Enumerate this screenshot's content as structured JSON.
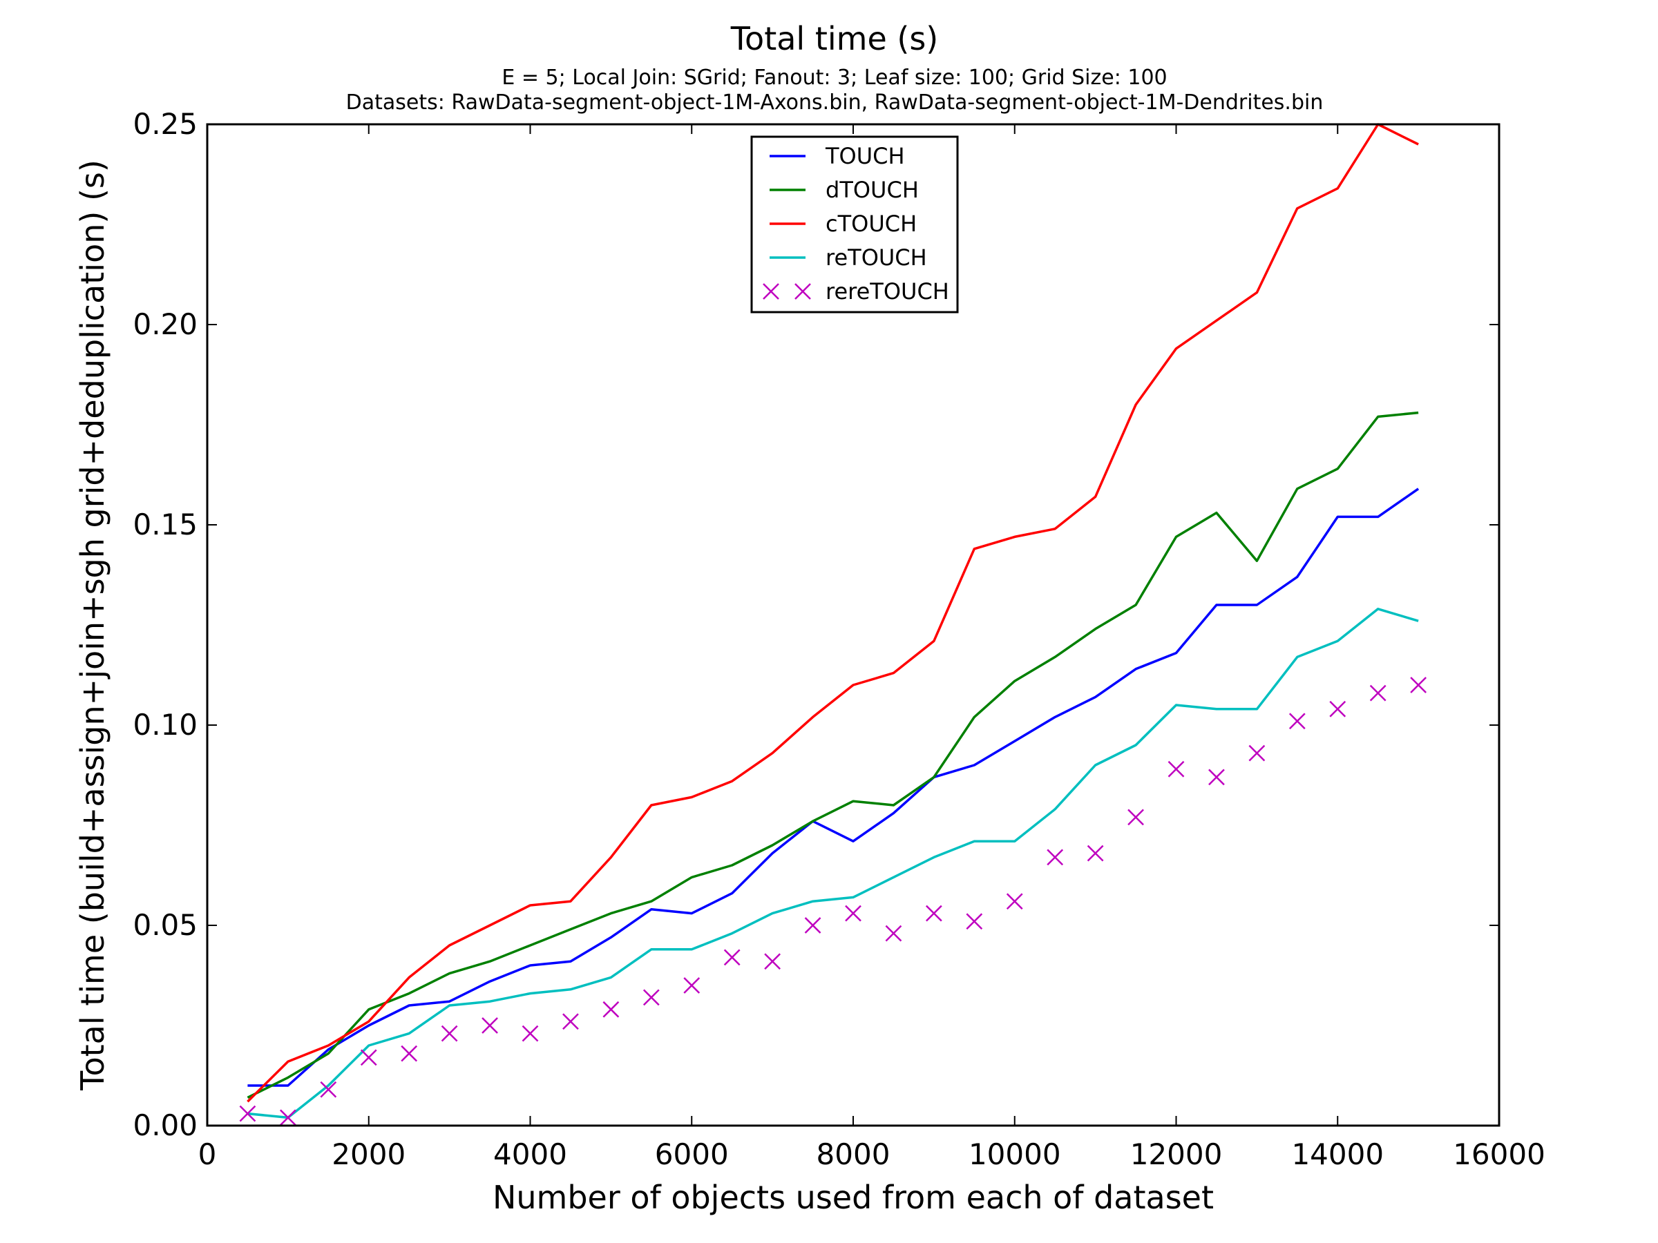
{
  "chart_data": {
    "type": "line",
    "title": "Total time (s)",
    "subtitle_lines": [
      "E = 5; Local Join: SGrid; Fanout: 3; Leaf size: 100; Grid Size: 100",
      "Datasets: RawData-segment-object-1M-Axons.bin, RawData-segment-object-1M-Dendrites.bin"
    ],
    "xlabel": "Number of objects used from each of dataset",
    "ylabel": "Total time (build+assign+join+sgh grid+deduplication) (s)",
    "xlim": [
      0,
      16000
    ],
    "ylim": [
      0,
      0.25
    ],
    "xticks": [
      0,
      2000,
      4000,
      6000,
      8000,
      10000,
      12000,
      14000,
      16000
    ],
    "xtick_labels": [
      "0",
      "2000",
      "4000",
      "6000",
      "8000",
      "10000",
      "12000",
      "14000",
      "16000"
    ],
    "yticks": [
      0,
      0.05,
      0.1,
      0.15,
      0.2,
      0.25
    ],
    "ytick_labels": [
      "0.00",
      "0.05",
      "0.10",
      "0.15",
      "0.20",
      "0.25"
    ],
    "grid": false,
    "legend_position": "top-center",
    "x": [
      500,
      1000,
      1500,
      2000,
      2500,
      3000,
      3500,
      4000,
      4500,
      5000,
      5500,
      6000,
      6500,
      7000,
      7500,
      8000,
      8500,
      9000,
      9500,
      10000,
      10500,
      11000,
      11500,
      12000,
      12500,
      13000,
      13500,
      14000,
      14500,
      15000
    ],
    "series": [
      {
        "name": "TOUCH",
        "style": "line",
        "color": "#0000ff",
        "values": [
          0.01,
          0.01,
          0.019,
          0.025,
          0.03,
          0.031,
          0.036,
          0.04,
          0.041,
          0.047,
          0.054,
          0.053,
          0.058,
          0.068,
          0.076,
          0.071,
          0.078,
          0.087,
          0.09,
          0.096,
          0.102,
          0.107,
          0.114,
          0.118,
          0.13,
          0.13,
          0.137,
          0.152,
          0.152,
          0.159
        ]
      },
      {
        "name": "dTOUCH",
        "style": "line",
        "color": "#008000",
        "values": [
          0.007,
          0.012,
          0.018,
          0.029,
          0.033,
          0.038,
          0.041,
          0.045,
          0.049,
          0.053,
          0.056,
          0.062,
          0.065,
          0.07,
          0.076,
          0.081,
          0.08,
          0.087,
          0.102,
          0.111,
          0.117,
          0.124,
          0.13,
          0.147,
          0.153,
          0.141,
          0.159,
          0.164,
          0.177,
          0.178
        ]
      },
      {
        "name": "cTOUCH",
        "style": "line",
        "color": "#ff0000",
        "values": [
          0.006,
          0.016,
          0.02,
          0.026,
          0.037,
          0.045,
          0.05,
          0.055,
          0.056,
          0.067,
          0.08,
          0.082,
          0.086,
          0.093,
          0.102,
          0.11,
          0.113,
          0.121,
          0.144,
          0.147,
          0.149,
          0.157,
          0.18,
          0.194,
          0.201,
          0.208,
          0.229,
          0.234,
          0.25,
          0.245
        ]
      },
      {
        "name": "reTOUCH",
        "style": "line",
        "color": "#00bfbf",
        "values": [
          0.003,
          0.002,
          0.01,
          0.02,
          0.023,
          0.03,
          0.031,
          0.033,
          0.034,
          0.037,
          0.044,
          0.044,
          0.048,
          0.053,
          0.056,
          0.057,
          0.062,
          0.067,
          0.071,
          0.071,
          0.079,
          0.09,
          0.095,
          0.105,
          0.104,
          0.104,
          0.117,
          0.121,
          0.129,
          0.126
        ]
      },
      {
        "name": "rereTOUCH",
        "style": "x-marker",
        "color": "#bf00bf",
        "values": [
          0.003,
          0.002,
          0.009,
          0.017,
          0.018,
          0.023,
          0.025,
          0.023,
          0.026,
          0.029,
          0.032,
          0.035,
          0.042,
          0.041,
          0.05,
          0.053,
          0.048,
          0.053,
          0.051,
          0.056,
          0.067,
          0.068,
          0.077,
          0.089,
          0.087,
          0.093,
          0.101,
          0.104,
          0.108,
          0.11
        ]
      }
    ]
  }
}
